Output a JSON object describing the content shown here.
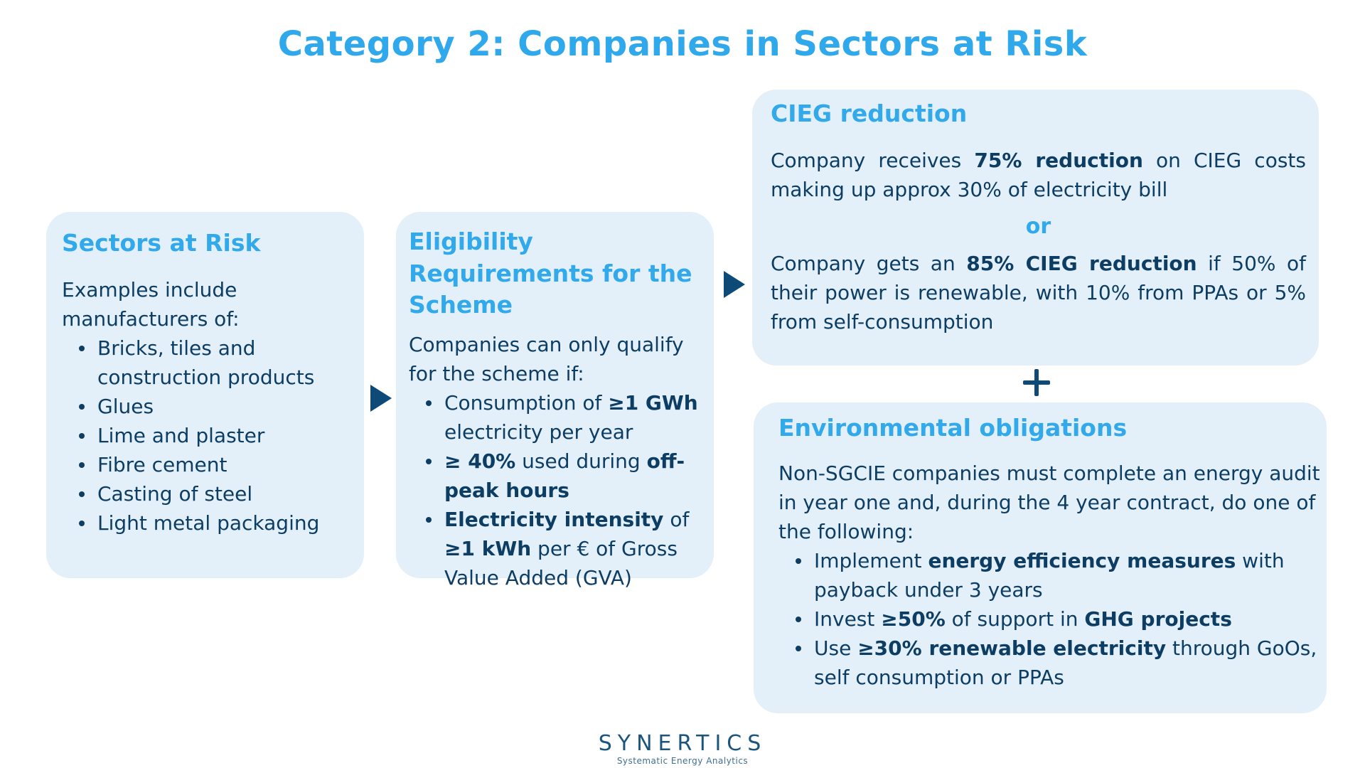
{
  "title": "Category 2: Companies in Sectors at Risk",
  "sectors": {
    "title": "Sectors at Risk",
    "intro": "Examples include manufacturers of:",
    "items": [
      "Bricks, tiles and construction products",
      "Glues",
      "Lime and plaster",
      "Fibre cement",
      "Casting of steel",
      "Light metal packaging"
    ]
  },
  "eligibility": {
    "title": "Eligibility Requirements for the Scheme",
    "intro": "Companies can only qualify for the scheme if:",
    "items": [
      {
        "a": "Consumption of ",
        "b": "≥1 GWh",
        "c": " electricity per year",
        "d": "",
        "e": ""
      },
      {
        "a": "",
        "b": "≥ 40%",
        "c": " used during ",
        "d": "off-peak hours",
        "e": ""
      },
      {
        "a": "",
        "b": "Electricity intensity",
        "c": " of ",
        "d": "≥1 kWh",
        "e": " per € of Gross Value Added (GVA)"
      }
    ]
  },
  "cieg": {
    "title": "CIEG reduction",
    "p1": {
      "a": "Company receives ",
      "b": "75% reduction",
      "c": " on CIEG costs making up approx 30% of electricity bill"
    },
    "or": "or",
    "p2": {
      "a": "Company gets an ",
      "b": "85% CIEG reduction",
      "c": " if 50% of their power is renewable, with 10% from PPAs or 5% from self-consumption"
    }
  },
  "environmental": {
    "title": "Environmental obligations",
    "intro": "Non-SGCIE companies must complete an energy audit in year one and, during the 4 year contract, do one of the following:",
    "items": [
      {
        "a": "Implement ",
        "b": "energy efficiency measures",
        "c": " with payback under 3 years",
        "d": "",
        "e": ""
      },
      {
        "a": "Invest ",
        "b": "≥50%",
        "c": " of support in ",
        "d": "GHG projects",
        "e": ""
      },
      {
        "a": "Use ",
        "b": "≥30% renewable electricity",
        "c": " through GoOs, self consumption or PPAs",
        "d": "",
        "e": ""
      }
    ]
  },
  "logo": {
    "name": "SYNERTICS",
    "tagline": "Systematic Energy Analytics"
  },
  "colors": {
    "accent": "#31a9ea",
    "card": "#e3f0f9",
    "text": "#0d3d63",
    "arrow": "#0d4a78"
  }
}
